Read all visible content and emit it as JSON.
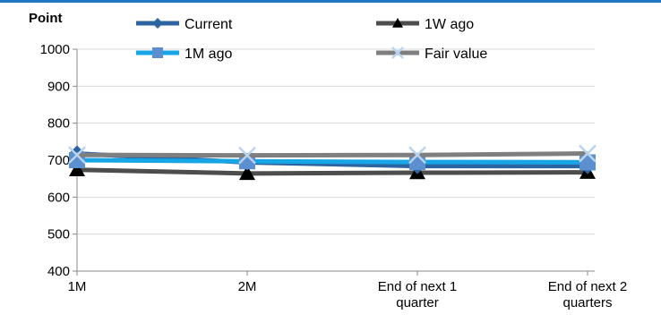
{
  "colors": {
    "accent_bar": "#1f77c2"
  },
  "chart_data": {
    "type": "line",
    "unit_label": "Point",
    "categories": [
      "1M",
      "2M",
      "End of next 1\nquarter",
      "End of next 2\nquarters"
    ],
    "ylim": [
      400,
      1000
    ],
    "yticks": [
      400,
      500,
      600,
      700,
      800,
      900,
      1000
    ],
    "grid": "horizontal",
    "legend_position": "top",
    "series": [
      {
        "name": "Current",
        "values": [
          718,
          694,
          684,
          684
        ],
        "color": "#2b64a0",
        "marker": "diamond"
      },
      {
        "name": "1W ago",
        "values": [
          674,
          664,
          666,
          667
        ],
        "color": "#4d4d4d",
        "marker": "triangle"
      },
      {
        "name": "1M ago",
        "values": [
          700,
          697,
          695,
          694
        ],
        "color": "#16a6e6",
        "marker": "square"
      },
      {
        "name": "Fair value",
        "values": [
          714,
          713,
          714,
          718
        ],
        "color": "#7f7f7f",
        "marker": "x"
      }
    ]
  }
}
